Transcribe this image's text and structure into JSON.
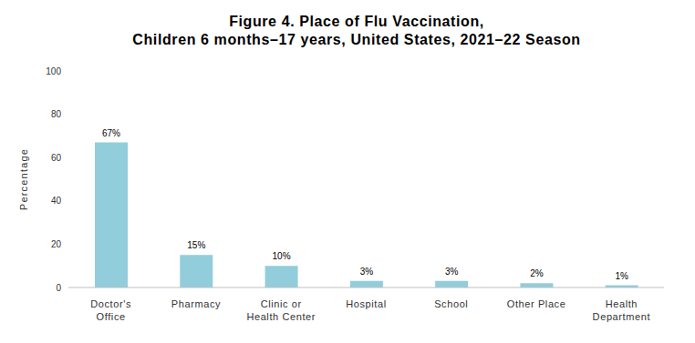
{
  "chart_data": {
    "type": "bar",
    "title": "Figure 4. Place of Flu Vaccination,",
    "subtitle": "Children 6 months–17 years, United States, 2021–22 Season",
    "y_label": "Percentage",
    "categories": [
      "Doctor's Office",
      "Pharmacy",
      "Clinic or Health Center",
      "Hospital",
      "School",
      "Other Place",
      "Health Department"
    ],
    "values": [
      67,
      15,
      10,
      3,
      3,
      2,
      1
    ],
    "value_labels": [
      "67%",
      "15%",
      "10%",
      "3%",
      "3%",
      "2%",
      "1%"
    ],
    "color": "#92cddc",
    "ylim": [
      0,
      100
    ],
    "yticks": [
      0,
      20,
      40,
      60,
      80,
      100
    ],
    "grid": false,
    "data_labels": true
  }
}
